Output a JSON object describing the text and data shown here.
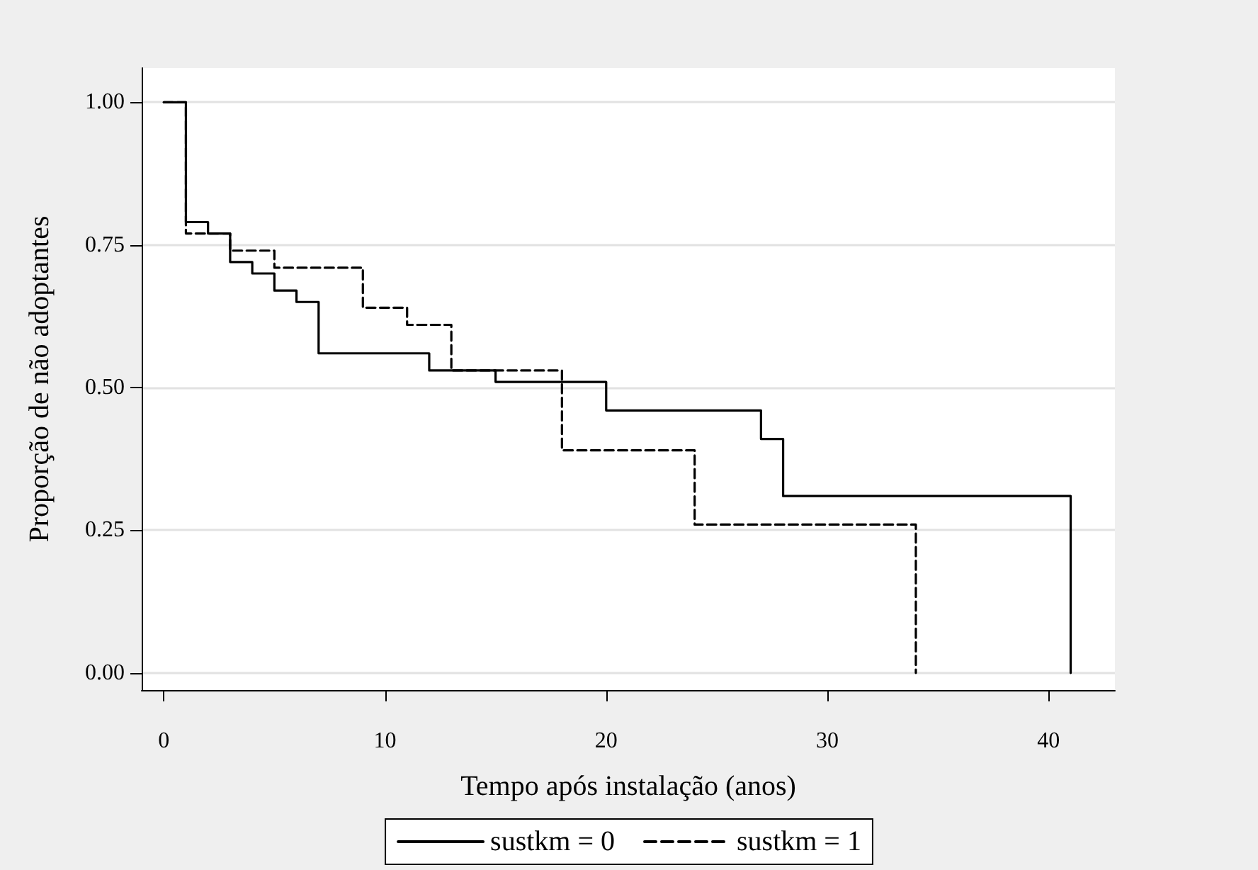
{
  "chart_data": {
    "type": "step",
    "xlabel": "Tempo após instalação (anos)",
    "ylabel": "Proporção de não adoptantes",
    "xlim": [
      -1,
      43
    ],
    "xticks": [
      0,
      10,
      20,
      30,
      40
    ],
    "ylim": [
      -0.03,
      1.06
    ],
    "yticks": [
      {
        "value": 0,
        "label": "0.00"
      },
      {
        "value": 0.25,
        "label": "0.25"
      },
      {
        "value": 0.5,
        "label": "0.50"
      },
      {
        "value": 0.75,
        "label": "0.75"
      },
      {
        "value": 1,
        "label": "1.00"
      }
    ],
    "grid": "y",
    "legend": "bottom",
    "marker": "none",
    "series": [
      {
        "name": "sustkm = 0",
        "color": "#000000",
        "line_style": "solid",
        "x": [
          0,
          1,
          2,
          3,
          4,
          5,
          6,
          7,
          12,
          15,
          20,
          27,
          28,
          41
        ],
        "values": [
          1,
          0.79,
          0.77,
          0.72,
          0.7,
          0.67,
          0.65,
          0.56,
          0.53,
          0.51,
          0.46,
          0.41,
          0.31,
          0
        ]
      },
      {
        "name": "sustkm = 1",
        "color": "#000000",
        "line_style": "dashed",
        "x": [
          0,
          1,
          3,
          5,
          9,
          11,
          13,
          18,
          24,
          34
        ],
        "values": [
          1,
          0.77,
          0.74,
          0.71,
          0.64,
          0.61,
          0.53,
          0.39,
          0.26,
          0
        ]
      }
    ]
  }
}
